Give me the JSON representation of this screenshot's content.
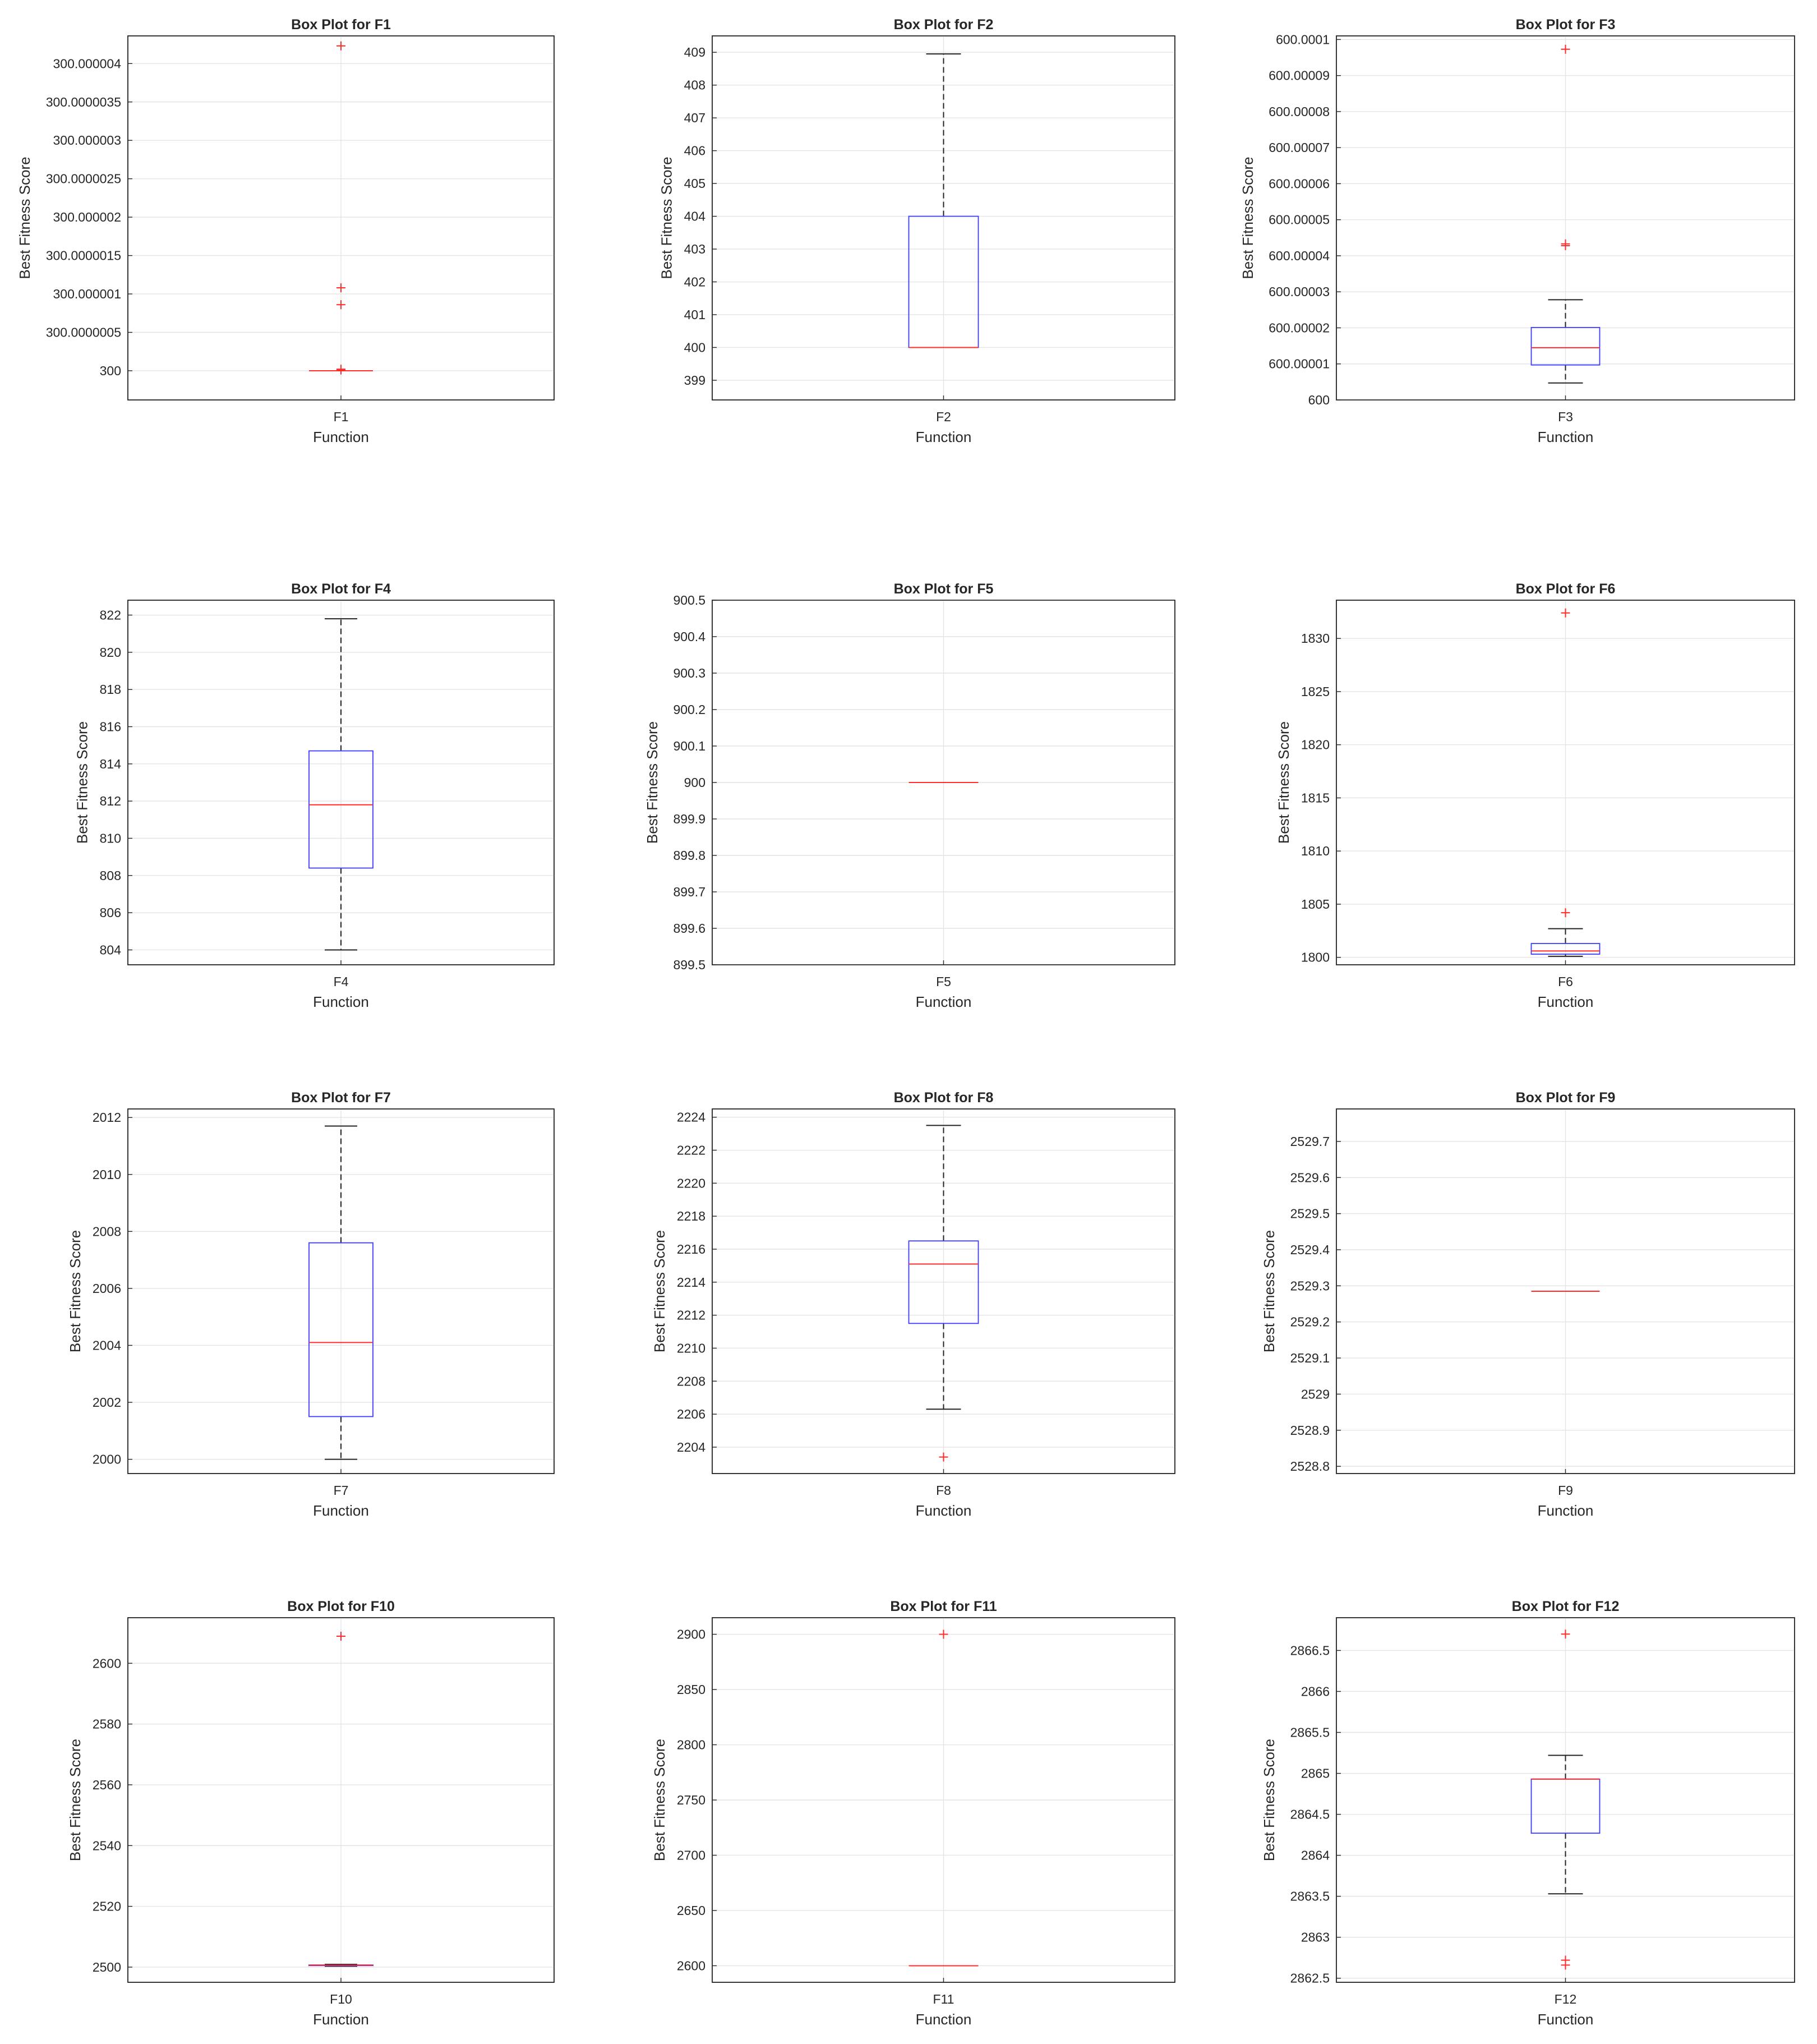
{
  "chart_data": [
    {
      "type": "box",
      "title": "Box Plot for F1",
      "xlabel": "Function",
      "ylabel": "Best Fitness Score",
      "categories": [
        "F1"
      ],
      "ylim": [
        299.99999962,
        300.00000436
      ],
      "yticks": [
        300,
        300.0000005,
        300.000001,
        300.0000015,
        300.000002,
        300.0000025,
        300.000003,
        300.0000035,
        300.000004
      ],
      "ytick_labels": [
        "300",
        "300.0000005",
        "300.000001",
        "300.0000015",
        "300.000002",
        "300.0000025",
        "300.000003",
        "300.0000035",
        "300.000004"
      ],
      "box": {
        "whisker_low": 300,
        "q1": 300,
        "median": 300,
        "q3": 300,
        "whisker_high": 300
      },
      "outliers": [
        300.00000423,
        300.00000108,
        300.00000086,
        300.00000002,
        300.00000001
      ]
    },
    {
      "type": "box",
      "title": "Box Plot for F2",
      "xlabel": "Function",
      "ylabel": "Best Fitness Score",
      "categories": [
        "F2"
      ],
      "ylim": [
        398.4,
        409.5
      ],
      "yticks": [
        399,
        400,
        401,
        402,
        403,
        404,
        405,
        406,
        407,
        408,
        409
      ],
      "ytick_labels": [
        "399",
        "400",
        "401",
        "402",
        "403",
        "404",
        "405",
        "406",
        "407",
        "408",
        "409"
      ],
      "box": {
        "whisker_low": 400,
        "q1": 400,
        "median": 400,
        "q3": 404,
        "whisker_high": 408.95
      },
      "outliers": []
    },
    {
      "type": "box",
      "title": "Box Plot for F3",
      "xlabel": "Function",
      "ylabel": "Best Fitness Score",
      "categories": [
        "F3"
      ],
      "ylim": [
        600,
        600.000101
      ],
      "yticks": [
        600,
        600.00001,
        600.00002,
        600.00003,
        600.00004,
        600.00005,
        600.00006,
        600.00007,
        600.00008,
        600.00009,
        600.0001
      ],
      "ytick_labels": [
        "600",
        "600.00001",
        "600.00002",
        "600.00003",
        "600.00004",
        "600.00005",
        "600.00006",
        "600.00007",
        "600.00008",
        "600.00009",
        "600.0001"
      ],
      "box": {
        "whisker_low": 600.0000047,
        "q1": 600.0000097,
        "median": 600.0000145,
        "q3": 600.0000201,
        "whisker_high": 600.0000278
      },
      "outliers": [
        600.0000973,
        600.0000433,
        600.0000428
      ]
    },
    {
      "type": "box",
      "title": "Box Plot for F4",
      "xlabel": "Function",
      "ylabel": "Best Fitness Score",
      "categories": [
        "F4"
      ],
      "ylim": [
        803.2,
        822.8
      ],
      "yticks": [
        804,
        806,
        808,
        810,
        812,
        814,
        816,
        818,
        820,
        822
      ],
      "ytick_labels": [
        "804",
        "806",
        "808",
        "810",
        "812",
        "814",
        "816",
        "818",
        "820",
        "822"
      ],
      "box": {
        "whisker_low": 804,
        "q1": 808.4,
        "median": 811.8,
        "q3": 814.7,
        "whisker_high": 821.8
      },
      "outliers": []
    },
    {
      "type": "box",
      "title": "Box Plot for F5",
      "xlabel": "Function",
      "ylabel": "Best Fitness Score",
      "categories": [
        "F5"
      ],
      "ylim": [
        899.5,
        900.5
      ],
      "yticks": [
        899.5,
        899.6,
        899.7,
        899.8,
        899.9,
        900,
        900.1,
        900.2,
        900.3,
        900.4,
        900.5
      ],
      "ytick_labels": [
        "899.5",
        "899.6",
        "899.7",
        "899.8",
        "899.9",
        "900",
        "900.1",
        "900.2",
        "900.3",
        "900.4",
        "900.5"
      ],
      "box": {
        "whisker_low": 900,
        "q1": 900,
        "median": 900,
        "q3": 900,
        "whisker_high": 900
      },
      "outliers": []
    },
    {
      "type": "box",
      "title": "Box Plot for F6",
      "xlabel": "Function",
      "ylabel": "Best Fitness Score",
      "categories": [
        "F6"
      ],
      "ylim": [
        1799.3,
        1833.6
      ],
      "yticks": [
        1800,
        1805,
        1810,
        1815,
        1820,
        1825,
        1830
      ],
      "ytick_labels": [
        "1800",
        "1805",
        "1810",
        "1815",
        "1820",
        "1825",
        "1830"
      ],
      "box": {
        "whisker_low": 1800.1,
        "q1": 1800.3,
        "median": 1800.6,
        "q3": 1801.3,
        "whisker_high": 1802.7
      },
      "outliers": [
        1832.4,
        1804.2
      ]
    },
    {
      "type": "box",
      "title": "Box Plot for F7",
      "xlabel": "Function",
      "ylabel": "Best Fitness Score",
      "categories": [
        "F7"
      ],
      "ylim": [
        1999.5,
        2012.3
      ],
      "yticks": [
        2000,
        2002,
        2004,
        2006,
        2008,
        2010,
        2012
      ],
      "ytick_labels": [
        "2000",
        "2002",
        "2004",
        "2006",
        "2008",
        "2010",
        "2012"
      ],
      "box": {
        "whisker_low": 2000,
        "q1": 2001.5,
        "median": 2004.1,
        "q3": 2007.6,
        "whisker_high": 2011.7
      },
      "outliers": []
    },
    {
      "type": "box",
      "title": "Box Plot for F8",
      "xlabel": "Function",
      "ylabel": "Best Fitness Score",
      "categories": [
        "F8"
      ],
      "ylim": [
        2202.4,
        2224.5
      ],
      "yticks": [
        2204,
        2206,
        2208,
        2210,
        2212,
        2214,
        2216,
        2218,
        2220,
        2222,
        2224
      ],
      "ytick_labels": [
        "2204",
        "2206",
        "2208",
        "2210",
        "2212",
        "2214",
        "2216",
        "2218",
        "2220",
        "2222",
        "2224"
      ],
      "box": {
        "whisker_low": 2206.3,
        "q1": 2211.5,
        "median": 2215.1,
        "q3": 2216.5,
        "whisker_high": 2223.5
      },
      "outliers": [
        2203.4
      ]
    },
    {
      "type": "box",
      "title": "Box Plot for F9",
      "xlabel": "Function",
      "ylabel": "Best Fitness Score",
      "categories": [
        "F9"
      ],
      "ylim": [
        2528.78,
        2529.79
      ],
      "yticks": [
        2528.8,
        2528.9,
        2529,
        2529.1,
        2529.2,
        2529.3,
        2529.4,
        2529.5,
        2529.6,
        2529.7
      ],
      "ytick_labels": [
        "2528.8",
        "2528.9",
        "2529",
        "2529.1",
        "2529.2",
        "2529.3",
        "2529.4",
        "2529.5",
        "2529.6",
        "2529.7"
      ],
      "box": {
        "whisker_low": 2529.285,
        "q1": 2529.285,
        "median": 2529.285,
        "q3": 2529.285,
        "whisker_high": 2529.285
      },
      "outliers": []
    },
    {
      "type": "box",
      "title": "Box Plot for F10",
      "xlabel": "Function",
      "ylabel": "Best Fitness Score",
      "categories": [
        "F10"
      ],
      "ylim": [
        2495,
        2615
      ],
      "yticks": [
        2500,
        2520,
        2540,
        2560,
        2580,
        2600
      ],
      "ytick_labels": [
        "2500",
        "2520",
        "2540",
        "2560",
        "2580",
        "2600"
      ],
      "box": {
        "whisker_low": 2500.3,
        "q1": 2500.5,
        "median": 2500.6,
        "q3": 2500.7,
        "whisker_high": 2500.9
      },
      "outliers": [
        2608.9
      ]
    },
    {
      "type": "box",
      "title": "Box Plot for F11",
      "xlabel": "Function",
      "ylabel": "Best Fitness Score",
      "categories": [
        "F11"
      ],
      "ylim": [
        2585,
        2915
      ],
      "yticks": [
        2600,
        2650,
        2700,
        2750,
        2800,
        2850,
        2900
      ],
      "ytick_labels": [
        "2600",
        "2650",
        "2700",
        "2750",
        "2800",
        "2850",
        "2900"
      ],
      "box": {
        "whisker_low": 2600,
        "q1": 2600,
        "median": 2600,
        "q3": 2600,
        "whisker_high": 2600
      },
      "outliers": [
        2900
      ]
    },
    {
      "type": "box",
      "title": "Box Plot for F12",
      "xlabel": "Function",
      "ylabel": "Best Fitness Score",
      "categories": [
        "F12"
      ],
      "ylim": [
        2862.45,
        2866.9
      ],
      "yticks": [
        2862.5,
        2863,
        2863.5,
        2864,
        2864.5,
        2865,
        2865.5,
        2866,
        2866.5
      ],
      "ytick_labels": [
        "2862.5",
        "2863",
        "2863.5",
        "2864",
        "2864.5",
        "2865",
        "2865.5",
        "2866",
        "2866.5"
      ],
      "box": {
        "whisker_low": 2863.53,
        "q1": 2864.27,
        "median": 2864.93,
        "q3": 2864.93,
        "whisker_high": 2865.22
      },
      "outliers": [
        2866.7,
        2862.72,
        2862.66
      ]
    }
  ]
}
